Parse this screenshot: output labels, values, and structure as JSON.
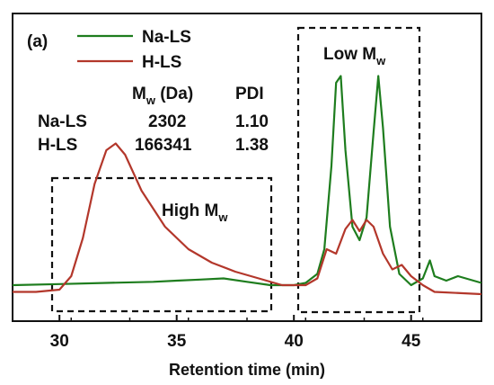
{
  "chart_data": {
    "type": "line",
    "panel_label": "(a)",
    "xlabel": "Retention time (min)",
    "ylabel": "",
    "xlim": [
      28,
      48
    ],
    "xticks": [
      30,
      35,
      40,
      45
    ],
    "y_ticks_shown": false,
    "grid": false,
    "legend_position": "top-left",
    "series": [
      {
        "name": "Na-LS",
        "color": "#1e7d1e",
        "x": [
          28,
          30,
          32,
          34,
          35,
          36,
          37,
          38,
          39,
          40,
          40.5,
          41,
          41.3,
          41.6,
          41.8,
          42.0,
          42.2,
          42.5,
          42.8,
          43.1,
          43.4,
          43.6,
          43.8,
          44.1,
          44.5,
          45.0,
          45.5,
          45.8,
          46.0,
          46.5,
          47.0,
          48
        ],
        "values": [
          0.02,
          0.025,
          0.03,
          0.035,
          0.04,
          0.045,
          0.05,
          0.035,
          0.02,
          0.02,
          0.03,
          0.07,
          0.18,
          0.55,
          0.92,
          0.95,
          0.62,
          0.28,
          0.22,
          0.32,
          0.7,
          0.95,
          0.72,
          0.28,
          0.07,
          0.02,
          0.05,
          0.13,
          0.06,
          0.04,
          0.06,
          0.03
        ]
      },
      {
        "name": "H-LS",
        "color": "#b3372b",
        "x": [
          28,
          29,
          30,
          30.5,
          31,
          31.5,
          32,
          32.4,
          32.8,
          33.5,
          34.5,
          35.5,
          36.5,
          37.5,
          38.5,
          39.5,
          40.5,
          41,
          41.4,
          41.8,
          42.2,
          42.5,
          42.8,
          43.1,
          43.4,
          43.8,
          44.2,
          44.6,
          45.0,
          45.5,
          46,
          48
        ],
        "values": [
          -0.01,
          -0.01,
          0.0,
          0.06,
          0.23,
          0.47,
          0.62,
          0.65,
          0.6,
          0.44,
          0.28,
          0.18,
          0.12,
          0.08,
          0.05,
          0.02,
          0.02,
          0.05,
          0.18,
          0.16,
          0.27,
          0.31,
          0.26,
          0.31,
          0.28,
          0.16,
          0.09,
          0.11,
          0.06,
          0.02,
          -0.01,
          -0.02
        ]
      }
    ],
    "annotations": {
      "high_mw_label": "High M",
      "high_mw_sub": "w",
      "low_mw_label": "Low M",
      "low_mw_sub": "w"
    },
    "table": {
      "header_mw": "M",
      "header_mw_sub": "w",
      "header_mw_unit": " (Da)",
      "header_pdi": "PDI",
      "rows": [
        {
          "name": "Na-LS",
          "mw": "2302",
          "pdi": "1.10",
          "color": "#1e7d1e"
        },
        {
          "name": "H-LS",
          "mw": "166341",
          "pdi": "1.38",
          "color": "#b3372b"
        }
      ]
    }
  }
}
